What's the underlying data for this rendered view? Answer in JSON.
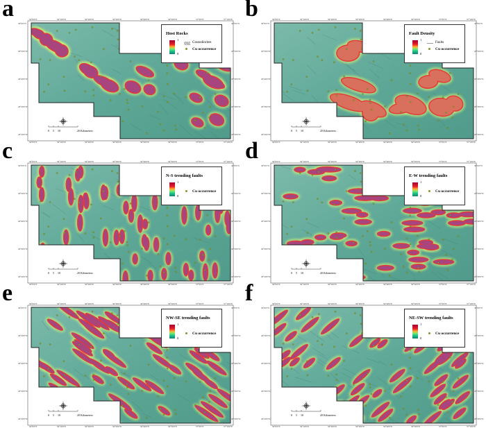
{
  "coordinates": {
    "lon_labels": [
      "56°0'0\"E",
      "56°10'0\"E",
      "56°20'0\"E",
      "56°30'0\"E",
      "56°40'0\"E",
      "56°50'0\"E",
      "57°0'0\"E",
      "57°10'0\"E"
    ],
    "lat_labels": [
      "30°0'0\"N",
      "29°50'0\"N",
      "29°40'0\"N",
      "29°30'0\"N",
      "29°20'0\"N"
    ]
  },
  "scale_bar": {
    "labels": [
      "0",
      "5",
      "10",
      "20 Kilometers"
    ]
  },
  "panels": [
    {
      "letter": "a",
      "legend_title": "Host Rocks",
      "ramp_max": "1",
      "ramp_min": "0",
      "extra_label": "Granodiorites",
      "extra_symbol": "hatch",
      "cu_label": "Cu occurrence",
      "style": "host"
    },
    {
      "letter": "b",
      "legend_title": "Fault Density",
      "ramp_max": "1",
      "ramp_min": "0",
      "extra_label": "Faults",
      "extra_symbol": "line",
      "cu_label": "Cu occurrence",
      "style": "density"
    },
    {
      "letter": "c",
      "legend_title": "N-S trending faults",
      "ramp_max": "1",
      "ramp_min": "0",
      "cu_label": "Cu occurrence",
      "style": "ns"
    },
    {
      "letter": "d",
      "legend_title": "E-W trending faults",
      "ramp_max": "1",
      "ramp_min": "0",
      "cu_label": "Cu occurrence",
      "style": "ew"
    },
    {
      "letter": "e",
      "legend_title": "NW-SE trending faults",
      "ramp_max": "1",
      "ramp_min": "0",
      "cu_label": "Cu occurrence",
      "style": "nwse"
    },
    {
      "letter": "f",
      "legend_title": "NE-SW trending faults",
      "ramp_max": "1",
      "ramp_min": "0",
      "cu_label": "Cu occurrence",
      "style": "nesw"
    }
  ],
  "colors": {
    "map_base": "#5fa898",
    "blob_core": "#a8457e",
    "blob_edge": "#e23a3a",
    "blob_glow": "#c9ec7a",
    "density_core": "#d9705e",
    "cu_dot": "#8aa32a"
  }
}
